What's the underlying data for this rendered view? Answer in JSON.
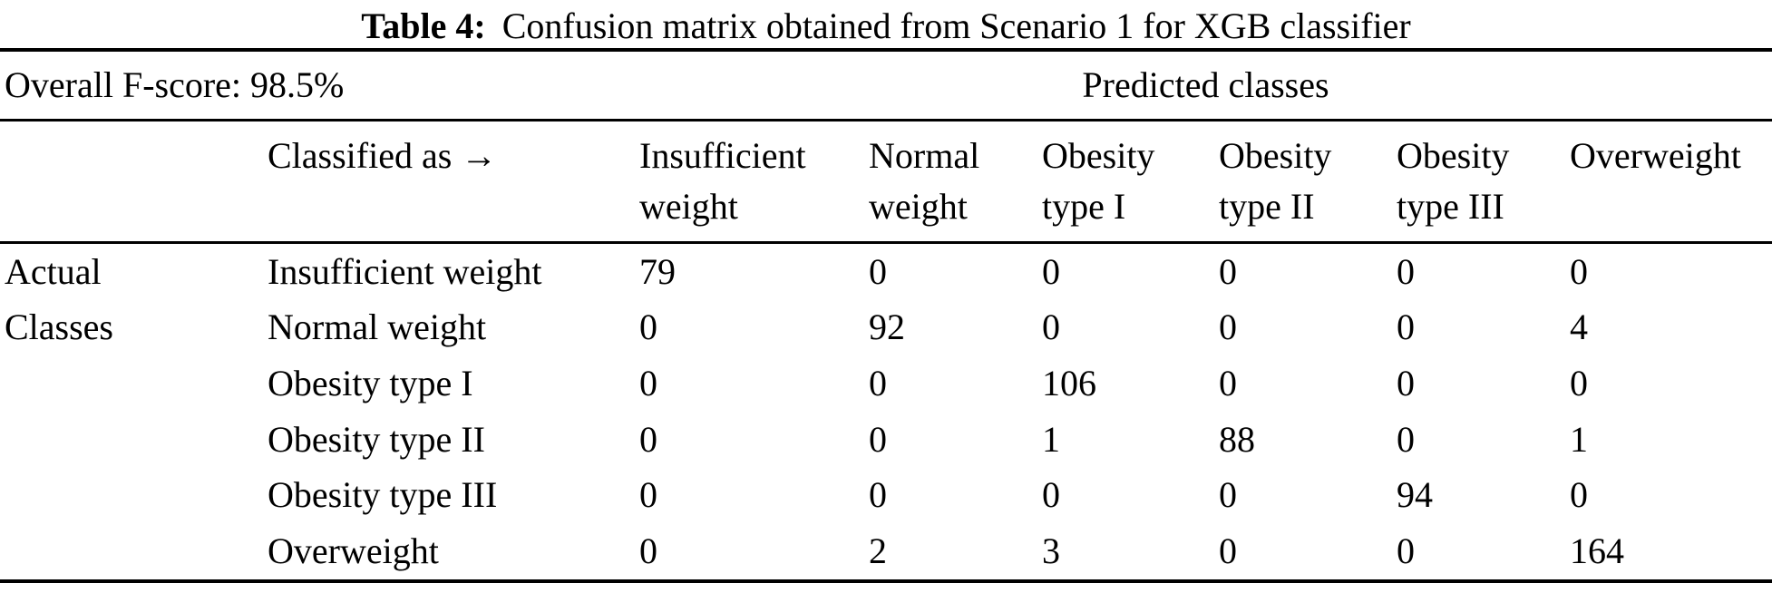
{
  "page": {
    "background": "#ffffff",
    "text_color": "#000000",
    "rule_color": "#000000"
  },
  "caption": {
    "label": "Table 4:",
    "text": "Confusion matrix obtained from Scenario 1 for XGB classifier"
  },
  "summary": {
    "overall_fscore": "Overall F-score: 98.5%",
    "predicted_classes_header": "Predicted classes"
  },
  "table": {
    "classified_as_header": "Classified as →",
    "actual_group_lines": [
      "Actual",
      "Classes"
    ],
    "column_headers": [
      {
        "line1": "Insufficient",
        "line2": "weight"
      },
      {
        "line1": "Normal",
        "line2": "weight"
      },
      {
        "line1": "Obesity",
        "line2": "type I"
      },
      {
        "line1": "Obesity",
        "line2": "type II"
      },
      {
        "line1": "Obesity",
        "line2": "type III"
      },
      {
        "line1": "Overweight",
        "line2": ""
      }
    ],
    "rows": [
      {
        "label": "Insufficient weight",
        "values": [
          "79",
          "0",
          "0",
          "0",
          "0",
          "0"
        ]
      },
      {
        "label": "Normal weight",
        "values": [
          "0",
          "92",
          "0",
          "0",
          "0",
          "4"
        ]
      },
      {
        "label": "Obesity type I",
        "values": [
          "0",
          "0",
          "106",
          "0",
          "0",
          "0"
        ]
      },
      {
        "label": "Obesity type II",
        "values": [
          "0",
          "0",
          "1",
          "88",
          "0",
          "1"
        ]
      },
      {
        "label": "Obesity type III",
        "values": [
          "0",
          "0",
          "0",
          "0",
          "94",
          "0"
        ]
      },
      {
        "label": "Overweight",
        "values": [
          "0",
          "2",
          "3",
          "0",
          "0",
          "164"
        ]
      }
    ]
  }
}
